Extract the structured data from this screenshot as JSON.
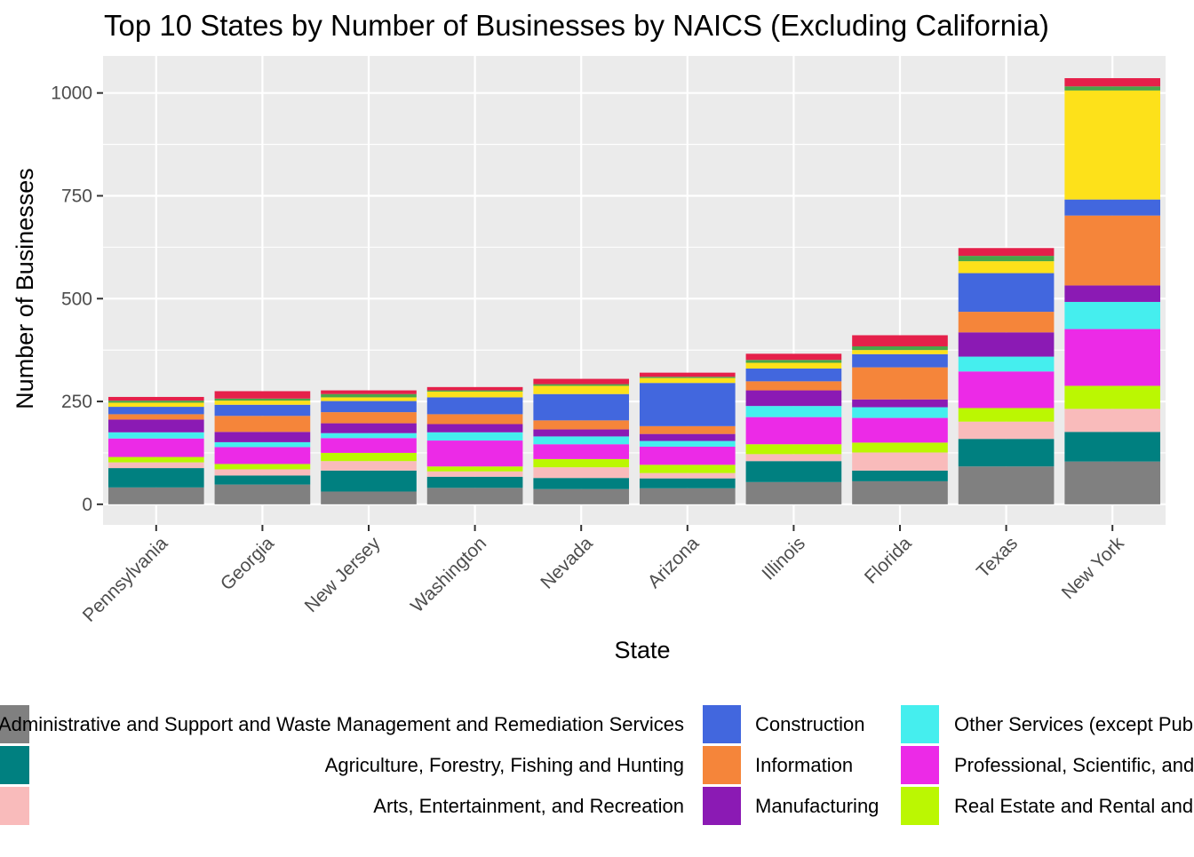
{
  "chart_data": {
    "type": "bar",
    "stacked": true,
    "title": "Top 10 States by Number of Businesses by NAICS (Excluding California)",
    "xlabel": "State",
    "ylabel": "Number of Businesses",
    "ylim": [
      -50,
      1090
    ],
    "yticks": [
      0,
      250,
      500,
      750,
      1000
    ],
    "grid": true,
    "legend_position": "bottom",
    "categories": [
      "Pennsylvania",
      "Georgia",
      "New Jersey",
      "Washington",
      "Nevada",
      "Arizona",
      "Illinois",
      "Florida",
      "Texas",
      "New York"
    ],
    "series": [
      {
        "color": "#808080",
        "values": [
          41,
          48,
          31,
          40,
          37,
          39,
          54,
          56,
          92,
          104
        ]
      },
      {
        "color": "#008080",
        "values": [
          47,
          22,
          51,
          27,
          27,
          24,
          51,
          26,
          67,
          72
        ]
      },
      {
        "color": "#F9BBBB",
        "values": [
          14,
          15,
          23,
          13,
          26,
          13,
          17,
          44,
          42,
          56
        ]
      },
      {
        "color": "#BBF702",
        "values": [
          13,
          13,
          20,
          12,
          20,
          20,
          24,
          24,
          33,
          56
        ]
      },
      {
        "color": "#EC2AE7",
        "values": [
          45,
          41,
          36,
          63,
          36,
          44,
          66,
          60,
          89,
          138
        ]
      },
      {
        "color": "#45EEEE",
        "values": [
          15,
          12,
          12,
          20,
          19,
          14,
          27,
          26,
          36,
          66
        ]
      },
      {
        "color": "#8B1AB4",
        "values": [
          31,
          25,
          24,
          20,
          17,
          17,
          38,
          19,
          59,
          40
        ]
      },
      {
        "color": "#F5853A",
        "values": [
          13,
          39,
          27,
          24,
          22,
          19,
          22,
          78,
          50,
          170
        ]
      },
      {
        "color": "#4267DE",
        "values": [
          18,
          27,
          27,
          41,
          64,
          105,
          31,
          32,
          94,
          39
        ]
      },
      {
        "color": "#FDE11A",
        "values": [
          10,
          10,
          9,
          14,
          20,
          12,
          14,
          10,
          29,
          265
        ]
      },
      {
        "color": "#4AA748",
        "values": [
          5,
          5,
          8,
          3,
          4,
          3,
          7,
          9,
          13,
          10
        ]
      },
      {
        "color": "#E5204A",
        "values": [
          9,
          18,
          9,
          8,
          13,
          10,
          15,
          27,
          19,
          20
        ]
      }
    ],
    "legend": [
      {
        "label": "Administrative and Support and Waste Management and Remediation Services",
        "color": "#808080"
      },
      {
        "label": "Agriculture, Forestry, Fishing and Hunting",
        "color": "#008080"
      },
      {
        "label": "Arts, Entertainment, and Recreation",
        "color": "#F9BBBB"
      },
      {
        "label": "Construction",
        "color": "#4267DE"
      },
      {
        "label": "Information",
        "color": "#F5853A"
      },
      {
        "label": "Manufacturing",
        "color": "#8B1AB4"
      },
      {
        "label": "Other Services (except Public Administration)",
        "color": "#45EEEE"
      },
      {
        "label": "Professional, Scientific, and Technical Services",
        "color": "#EC2AE7"
      },
      {
        "label": "Real Estate and Rental and Leasing",
        "color": "#BBF702"
      }
    ]
  }
}
